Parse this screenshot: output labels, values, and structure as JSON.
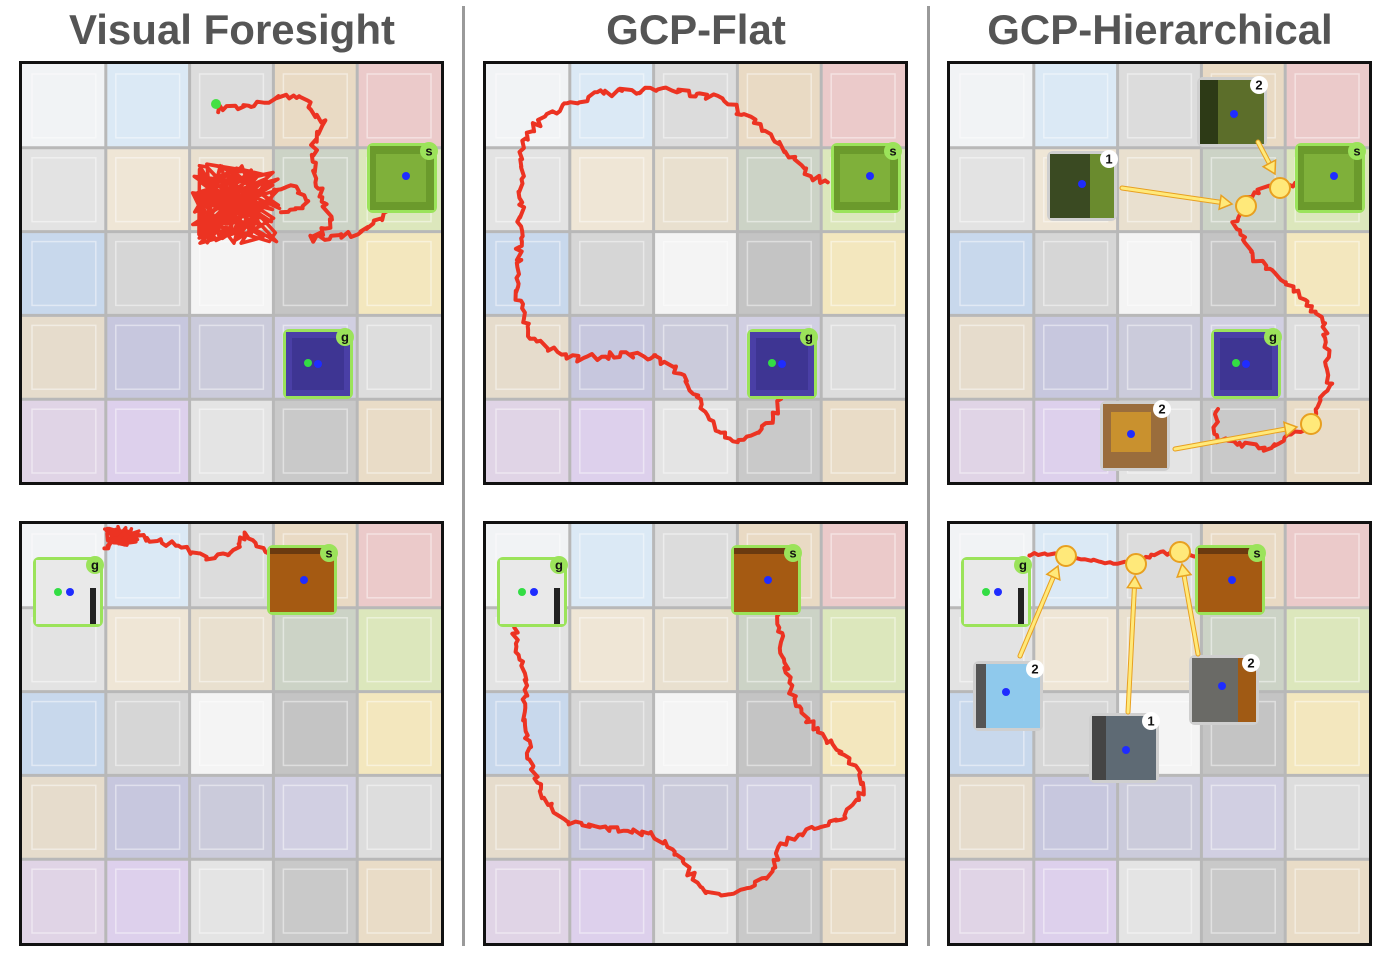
{
  "columns": [
    {
      "id": "vf",
      "title": "Visual Foresight"
    },
    {
      "id": "gcpf",
      "title": "GCP-Flat"
    },
    {
      "id": "gcph",
      "title": "GCP-Hierarchical"
    }
  ],
  "tile_colors": [
    [
      "#f1f3f5",
      "#dbe9f5",
      "#dcdcdc",
      "#e9dac4",
      "#ebcaca"
    ],
    [
      "#e3e3e3",
      "#efe6d6",
      "#e9e0cf",
      "#ccd3c6",
      "#dce7bc"
    ],
    [
      "#c8d8ec",
      "#d6d6d6",
      "#f4f4f4",
      "#c4c4c4",
      "#f3e7be"
    ],
    [
      "#e6dccc",
      "#c7c7de",
      "#cbcbdb",
      "#d1cfe2",
      "#dddddd"
    ],
    [
      "#e0d4e6",
      "#ddd0ec",
      "#e4e4e4",
      "#c9c9c9",
      "#e9dcc7"
    ]
  ],
  "labels": {
    "start": "s",
    "goal": "g",
    "sub1": "1",
    "sub2": "2"
  },
  "colors": {
    "trajectory": "#ec3322",
    "frame_green": "#9be35a",
    "subgoal_yellow": "#ffe97a",
    "subgoal_stroke": "#e8a020",
    "title_gray": "#555555"
  }
}
